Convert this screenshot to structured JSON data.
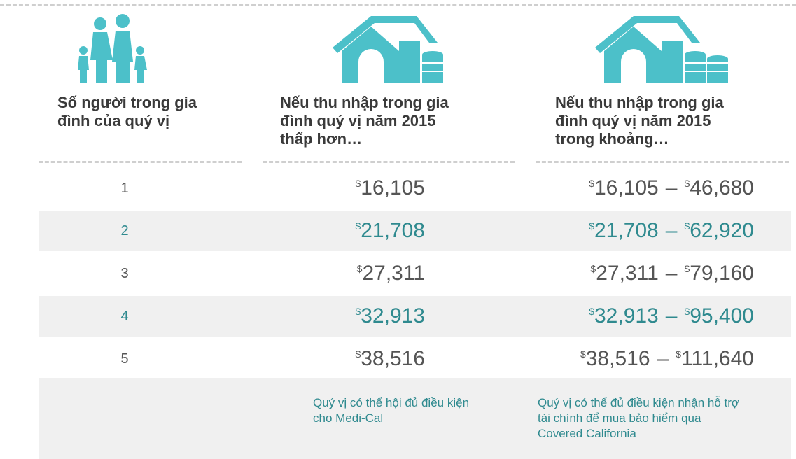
{
  "header": {
    "columns": [
      "Số người trong gia đình của quý vị",
      "Nếu thu nhập trong gia đình quý vị năm 2015 thấp hơn…",
      "Nếu thu nhập trong gia đình quý vị năm 2015 trong khoảng…"
    ]
  },
  "currency": "$",
  "dash": "–",
  "table": {
    "rows": [
      [
        "1",
        "16,105",
        "16,105",
        "46,680"
      ],
      [
        "2",
        "21,708",
        "21,708",
        "62,920"
      ],
      [
        "3",
        "27,311",
        "27,311",
        "79,160"
      ],
      [
        "4",
        "32,913",
        "32,913",
        "95,400"
      ],
      [
        "5",
        "38,516",
        "38,516",
        "111,640"
      ]
    ]
  },
  "footnotes": [
    "Quý vị có thể hội đủ điều kiện cho Medi-Cal",
    "Quý vị có thể đủ điều kiện nhận hỗ trợ tài chính để mua bảo hiểm qua Covered California"
  ]
}
